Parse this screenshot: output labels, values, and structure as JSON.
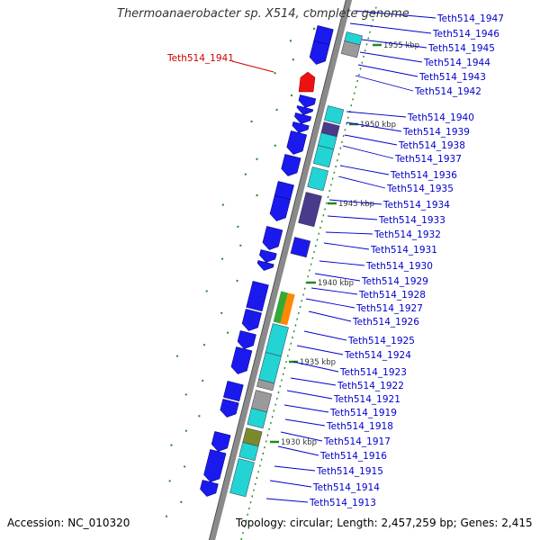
{
  "header": {
    "title": "Thermoanaerobacter sp. X514, complete genome"
  },
  "footer": {
    "accession": "Accession: NC_010320",
    "topology": "Topology: circular; Length: 2,457,259 bp; Genes: 2,415"
  },
  "colors": {
    "backbone": "#8a8a8a",
    "gene_blue": "#1a1aee",
    "gene_cyan": "#22d4d4",
    "gene_navy": "#4a3a8c",
    "gene_gray": "#9a9a9a",
    "gene_red": "#ee1111",
    "gene_green": "#33aa33",
    "gene_orange": "#ff8800",
    "gene_olive": "#7a8a2a",
    "gc_green": "#228822",
    "label_blue": "#0000cc",
    "label_red": "#cc0000"
  },
  "highlighted_gene": {
    "label": "Teth514_1941",
    "color": "red"
  },
  "kbp_markers": [
    "1955 kbp",
    "1950 kbp",
    "1945 kbp",
    "1940 kbp",
    "1935 kbp",
    "1930 kbp"
  ],
  "gene_labels": [
    "Teth514_1947",
    "Teth514_1946",
    "Teth514_1945",
    "Teth514_1944",
    "Teth514_1943",
    "Teth514_1942",
    "Teth514_1940",
    "Teth514_1939",
    "Teth514_1938",
    "Teth514_1937",
    "Teth514_1936",
    "Teth514_1935",
    "Teth514_1934",
    "Teth514_1933",
    "Teth514_1932",
    "Teth514_1931",
    "Teth514_1930",
    "Teth514_1929",
    "Teth514_1928",
    "Teth514_1927",
    "Teth514_1926",
    "Teth514_1925",
    "Teth514_1924",
    "Teth514_1923",
    "Teth514_1922",
    "Teth514_1921",
    "Teth514_1919",
    "Teth514_1918",
    "Teth514_1917",
    "Teth514_1916",
    "Teth514_1915",
    "Teth514_1914",
    "Teth514_1913"
  ]
}
